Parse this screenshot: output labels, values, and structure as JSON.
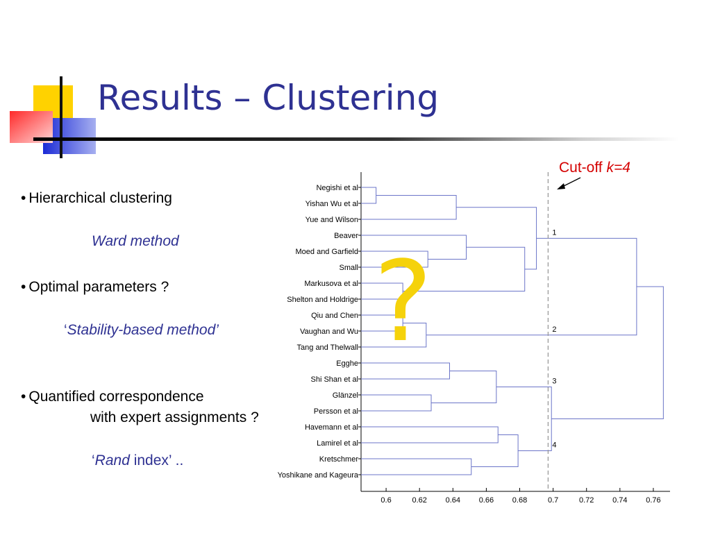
{
  "slide": {
    "title": "Results – Clustering",
    "bullets": {
      "b1": {
        "dot": "•",
        "text": "Hierarchical clustering"
      },
      "b1_sub": "Ward method",
      "b2": {
        "dot": "•",
        "text": "Optimal parameters ?"
      },
      "b2_sub": {
        "open": "‘",
        "text": "Stability-based method’"
      },
      "b3": {
        "dot": "•",
        "text": "Quantified correspondence",
        "cont": "with expert assignments ?"
      },
      "b3_sub": {
        "open": "‘",
        "text_italic": "Rand",
        "text_rest": " index’ .."
      }
    },
    "cutoff": {
      "label": "Cut-off ",
      "k": "k=4"
    },
    "question_mark": "?",
    "colors": {
      "title": "#2e3192",
      "cutoff": "#d40000",
      "question": "#f5d20b",
      "tree": "#6b75c8"
    }
  },
  "chart_data": {
    "type": "dendrogram",
    "xlim": [
      0.585,
      0.77
    ],
    "xticks": [
      "0.6",
      "0.62",
      "0.64",
      "0.66",
      "0.68",
      "0.7",
      "0.72",
      "0.74",
      "0.76"
    ],
    "leaves": [
      "Negishi et al",
      "Yishan Wu et al",
      "Yue and Wilson",
      "Beaver",
      "Moed and Garfield",
      "Small",
      "Markusova et al",
      "Shelton and Holdrige",
      "Qiu and  Chen",
      "Vaughan and  Wu",
      "Tang and Thelwall",
      "Egghe",
      "Shi Shan et al",
      "Glänzel",
      "Persson et al",
      "Havemann et al",
      "Lamirel et al",
      "Kretschmer",
      "Yoshikane and Kageura"
    ],
    "merges": [
      {
        "id": "m1",
        "a": "L0",
        "b": "L1",
        "h": 0.594
      },
      {
        "id": "m2",
        "a": "m1",
        "b": "L2",
        "h": 0.642
      },
      {
        "id": "m3",
        "a": "L4",
        "b": "L5",
        "h": 0.625
      },
      {
        "id": "m4",
        "a": "L3",
        "b": "m3",
        "h": 0.648
      },
      {
        "id": "m5",
        "a": "L6",
        "b": "L7",
        "h": 0.61
      },
      {
        "id": "m6",
        "a": "m4",
        "b": "m5",
        "h": 0.683
      },
      {
        "id": "m7",
        "a": "m2",
        "b": "m6",
        "h": 0.69
      },
      {
        "id": "m8",
        "a": "L8",
        "b": "L9",
        "h": 0.61
      },
      {
        "id": "m9",
        "a": "m8",
        "b": "L10",
        "h": 0.624
      },
      {
        "id": "m10",
        "a": "m7",
        "b": "m9",
        "h": 0.75
      },
      {
        "id": "m11",
        "a": "L11",
        "b": "L12",
        "h": 0.638
      },
      {
        "id": "m12",
        "a": "L13",
        "b": "L14",
        "h": 0.627
      },
      {
        "id": "m13",
        "a": "m11",
        "b": "m12",
        "h": 0.666
      },
      {
        "id": "m14",
        "a": "L15",
        "b": "L16",
        "h": 0.667
      },
      {
        "id": "m15",
        "a": "L17",
        "b": "L18",
        "h": 0.651
      },
      {
        "id": "m16",
        "a": "m14",
        "b": "m15",
        "h": 0.679
      },
      {
        "id": "m17",
        "a": "m13",
        "b": "m16",
        "h": 0.699
      },
      {
        "id": "m18",
        "a": "m10",
        "b": "m17",
        "h": 0.766
      }
    ],
    "cut_height": 0.697,
    "cluster_labels": [
      {
        "text": "1",
        "node": "m7"
      },
      {
        "text": "2",
        "node": "m9"
      },
      {
        "text": "3",
        "node": "m13"
      },
      {
        "text": "4",
        "node": "m16"
      }
    ]
  }
}
